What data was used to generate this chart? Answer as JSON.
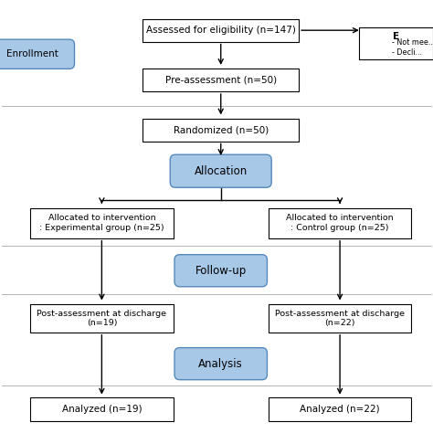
{
  "bg_color": "#ffffff",
  "blue_fill": "#a8c8e8",
  "blue_border": "#5588bb",
  "label_enrollment": "Enrollment",
  "box1_text": "Assessed for eligibility (n=147)",
  "box2_text": "Pre-assessment (n=50)",
  "box3_text": "Randomized (n=50)",
  "box4_text": "Allocation",
  "box5L_text": "Allocated to intervention\n: Experimental group (n=25)",
  "box5R_text": "Allocated to intervention\n: Control group (n=25)",
  "box6_text": "Follow-up",
  "box7L_text": "Post-assessment at discharge\n(n=19)",
  "box7R_text": "Post-assessment at discharge\n(n=22)",
  "box8_text": "Analysis",
  "box9L_text": "Analyzed (n=19)",
  "box9R_text": "Analyzed (n=22)",
  "excl_bold": "E",
  "excl_text": "- Not mee...\n- Decli...",
  "sep_color": "#aaaaaa",
  "arrow_color": "#000000"
}
